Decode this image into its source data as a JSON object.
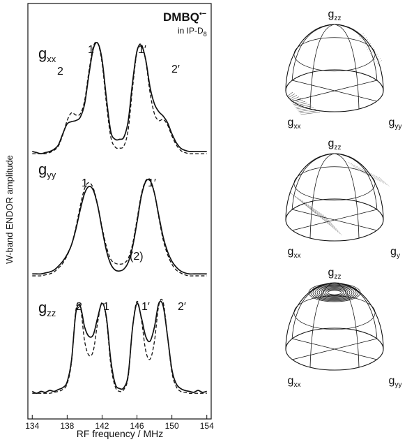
{
  "chart_data": {
    "type": "line",
    "title": "DMBQ",
    "title_sup": "•−",
    "subtitle": "in IP-D",
    "subtitle_sub": "8",
    "xlabel": "RF frequency / MHz",
    "ylabel": "W-band ENDOR amplitude",
    "xlim": [
      133.5,
      154.5
    ],
    "xticks": [
      134,
      138,
      142,
      146,
      150,
      154
    ],
    "x": [
      134,
      134.5,
      135,
      135.5,
      136,
      136.5,
      137,
      137.5,
      138,
      138.5,
      139,
      139.5,
      140,
      140.5,
      141,
      141.5,
      142,
      142.5,
      143,
      143.5,
      144,
      144.5,
      145,
      145.5,
      146,
      146.5,
      147,
      147.5,
      148,
      148.5,
      149,
      149.5,
      150,
      150.5,
      151,
      151.5,
      152,
      152.5,
      153,
      153.5,
      154
    ],
    "panels": [
      {
        "label": "g",
        "label_sub": "xx",
        "ylim": [
          -0.05,
          1.1
        ],
        "annotations": [
          "2",
          "1",
          "1′",
          "2′"
        ],
        "series": [
          {
            "style": "solid",
            "color": "#111111",
            "values": [
              0.02,
              0.01,
              0.0,
              0.01,
              0.02,
              0.04,
              0.08,
              0.18,
              0.27,
              0.29,
              0.3,
              0.33,
              0.45,
              0.72,
              0.95,
              1.0,
              0.85,
              0.5,
              0.2,
              0.13,
              0.13,
              0.15,
              0.3,
              0.65,
              0.93,
              0.98,
              0.85,
              0.6,
              0.45,
              0.38,
              0.34,
              0.28,
              0.18,
              0.1,
              0.05,
              0.03,
              0.02,
              0.02,
              0.02,
              0.02,
              0.02
            ]
          },
          {
            "style": "dashed",
            "color": "#111111",
            "values": [
              0,
              0,
              0,
              0,
              0.01,
              0.03,
              0.07,
              0.17,
              0.3,
              0.37,
              0.35,
              0.36,
              0.48,
              0.75,
              0.97,
              1.0,
              0.82,
              0.45,
              0.15,
              0.06,
              0.05,
              0.07,
              0.22,
              0.6,
              0.92,
              0.99,
              0.84,
              0.55,
              0.36,
              0.3,
              0.31,
              0.26,
              0.16,
              0.08,
              0.03,
              0.01,
              0,
              0,
              0,
              0,
              0
            ]
          }
        ]
      },
      {
        "label": "g",
        "label_sub": "yy",
        "ylim": [
          -0.05,
          1.1
        ],
        "annotations": [
          "1",
          "1′",
          "(2)"
        ],
        "series": [
          {
            "style": "solid",
            "color": "#111111",
            "values": [
              0.02,
              0.02,
              0.02,
              0.03,
              0.04,
              0.06,
              0.1,
              0.15,
              0.22,
              0.32,
              0.48,
              0.68,
              0.85,
              0.92,
              0.88,
              0.72,
              0.48,
              0.26,
              0.12,
              0.06,
              0.05,
              0.07,
              0.14,
              0.3,
              0.55,
              0.82,
              0.97,
              0.98,
              0.85,
              0.62,
              0.4,
              0.25,
              0.15,
              0.09,
              0.05,
              0.03,
              0.02,
              0.02,
              0.02,
              0.02,
              0.02
            ]
          },
          {
            "style": "dashed",
            "color": "#111111",
            "values": [
              0,
              0,
              0,
              0.01,
              0.02,
              0.04,
              0.08,
              0.13,
              0.21,
              0.32,
              0.5,
              0.72,
              0.9,
              0.96,
              0.9,
              0.73,
              0.5,
              0.3,
              0.17,
              0.13,
              0.12,
              0.13,
              0.18,
              0.33,
              0.58,
              0.84,
              0.98,
              0.99,
              0.85,
              0.6,
              0.37,
              0.22,
              0.12,
              0.06,
              0.03,
              0.01,
              0,
              0,
              0,
              0,
              0
            ]
          }
        ]
      },
      {
        "label": "g",
        "label_sub": "zz",
        "ylim": [
          -0.05,
          1.1
        ],
        "annotations": [
          "2",
          "1",
          "1′",
          "2′"
        ],
        "series": [
          {
            "style": "solid",
            "color": "#111111",
            "values": [
              0.02,
              0,
              0.02,
              0.01,
              0.03,
              0.02,
              0.04,
              0.06,
              0.12,
              0.35,
              0.85,
              0.92,
              0.7,
              0.6,
              0.62,
              0.8,
              0.95,
              0.8,
              0.35,
              0.1,
              0.05,
              0.06,
              0.2,
              0.7,
              0.95,
              0.8,
              0.6,
              0.55,
              0.7,
              0.95,
              0.92,
              0.6,
              0.25,
              0.1,
              0.05,
              0.03,
              0.02,
              0.01,
              0.03,
              0.01,
              0.02
            ]
          },
          {
            "style": "dashed",
            "color": "#111111",
            "values": [
              0,
              0,
              0,
              0,
              0,
              0.01,
              0.02,
              0.04,
              0.1,
              0.33,
              0.88,
              0.92,
              0.55,
              0.4,
              0.45,
              0.75,
              0.96,
              0.78,
              0.3,
              0.07,
              0.02,
              0.04,
              0.18,
              0.7,
              0.97,
              0.78,
              0.45,
              0.36,
              0.55,
              0.93,
              0.96,
              0.6,
              0.22,
              0.07,
              0.02,
              0.01,
              0,
              0,
              0,
              0,
              0
            ]
          }
        ]
      }
    ],
    "orientation_plots": [
      {
        "top": {
          "main": "g",
          "sub": "zz"
        },
        "left": {
          "main": "g",
          "sub": "xx"
        },
        "right": {
          "main": "g",
          "sub": "yy"
        }
      },
      {
        "top": {
          "main": "g",
          "sub": "zz"
        },
        "left": {
          "main": "g",
          "sub": "xx"
        },
        "right": {
          "main": "g",
          "sub": "y"
        }
      },
      {
        "top": {
          "main": "g",
          "sub": "zz"
        },
        "left": {
          "main": "g",
          "sub": "xx"
        },
        "right": {
          "main": "g",
          "sub": "yy"
        }
      }
    ]
  }
}
